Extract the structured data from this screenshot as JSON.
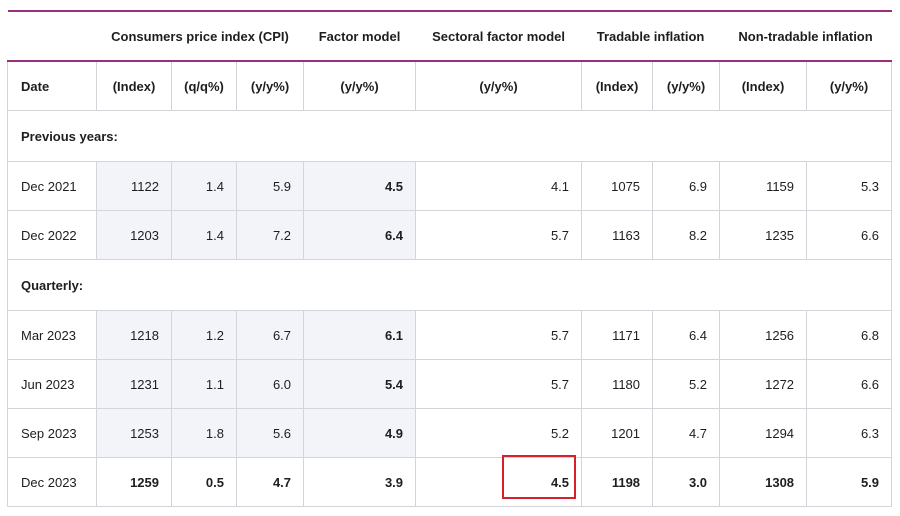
{
  "table": {
    "group_headers": {
      "cpi": "Consumers price index (CPI)",
      "factor_model": "Factor model",
      "sectoral_factor_model": "Sectoral factor model",
      "tradable": "Tradable inflation",
      "non_tradable": "Non-tradable inflation"
    },
    "sub_headers": {
      "date": "Date",
      "cpi_index": "(Index)",
      "cpi_qq": "(q/q%)",
      "cpi_yy": "(y/y%)",
      "fm_yy": "(y/y%)",
      "sfm_yy": "(y/y%)",
      "t_index": "(Index)",
      "t_yy": "(y/y%)",
      "nt_index": "(Index)",
      "nt_yy": "(y/y%)"
    },
    "sections": {
      "previous": "Previous years:",
      "quarterly": "Quarterly:"
    },
    "rows": [
      {
        "date": "Dec 2021",
        "cpi_index": "1122",
        "cpi_qq": "1.4",
        "cpi_yy": "5.9",
        "fm": "4.5",
        "sfm": "4.1",
        "t_index": "1075",
        "t_yy": "6.9",
        "nt_index": "1159",
        "nt_yy": "5.3"
      },
      {
        "date": "Dec 2022",
        "cpi_index": "1203",
        "cpi_qq": "1.4",
        "cpi_yy": "7.2",
        "fm": "6.4",
        "sfm": "5.7",
        "t_index": "1163",
        "t_yy": "8.2",
        "nt_index": "1235",
        "nt_yy": "6.6"
      },
      {
        "date": "Mar 2023",
        "cpi_index": "1218",
        "cpi_qq": "1.2",
        "cpi_yy": "6.7",
        "fm": "6.1",
        "sfm": "5.7",
        "t_index": "1171",
        "t_yy": "6.4",
        "nt_index": "1256",
        "nt_yy": "6.8"
      },
      {
        "date": "Jun 2023",
        "cpi_index": "1231",
        "cpi_qq": "1.1",
        "cpi_yy": "6.0",
        "fm": "5.4",
        "sfm": "5.7",
        "t_index": "1180",
        "t_yy": "5.2",
        "nt_index": "1272",
        "nt_yy": "6.6"
      },
      {
        "date": "Sep 2023",
        "cpi_index": "1253",
        "cpi_qq": "1.8",
        "cpi_yy": "5.6",
        "fm": "4.9",
        "sfm": "5.2",
        "t_index": "1201",
        "t_yy": "4.7",
        "nt_index": "1294",
        "nt_yy": "6.3"
      },
      {
        "date": "Dec 2023",
        "cpi_index": "1259",
        "cpi_qq": "0.5",
        "cpi_yy": "4.7",
        "fm": "3.9",
        "sfm": "4.5",
        "t_index": "1198",
        "t_yy": "3.0",
        "nt_index": "1308",
        "nt_yy": "5.9"
      }
    ]
  },
  "colors": {
    "header_rule": "#9b2d7f",
    "shaded_cell": "#f2f4f9",
    "highlight_box": "#d8202a",
    "grid": "#d2d5da"
  }
}
